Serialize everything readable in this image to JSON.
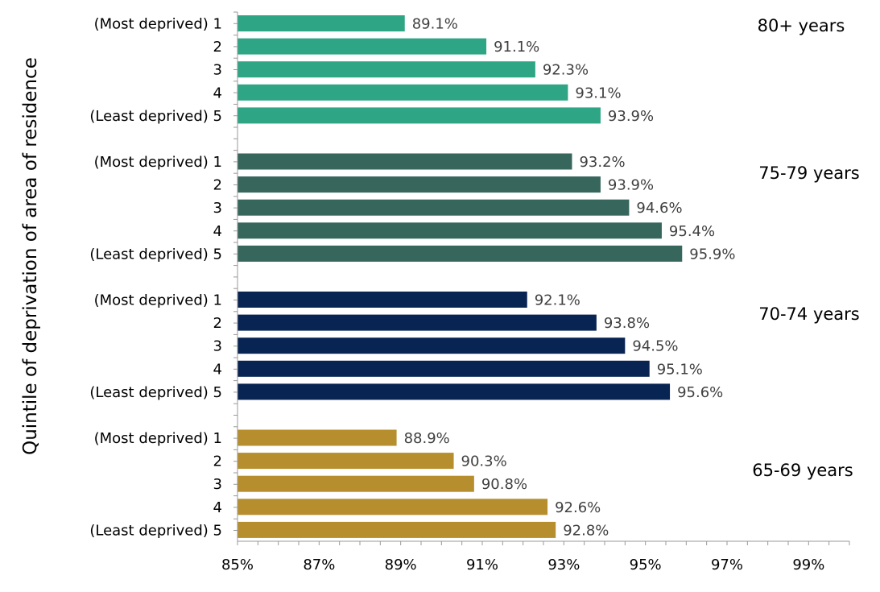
{
  "chart_data": {
    "type": "bar",
    "orientation": "horizontal",
    "ylabel": "Quintile of deprivation of area of residence",
    "xlabel": "",
    "xlim": [
      85,
      100
    ],
    "x_ticks": [
      "85%",
      "87%",
      "89%",
      "91%",
      "93%",
      "95%",
      "97%",
      "99%"
    ],
    "x_tick_values": [
      85,
      87,
      89,
      91,
      93,
      95,
      97,
      99
    ],
    "grid": false,
    "categories": [
      "(Most deprived) 1",
      "2",
      "3",
      "4",
      "(Least deprived) 5"
    ],
    "groups": [
      {
        "name": "80+ years",
        "color": "#2ea584",
        "values": [
          89.1,
          91.1,
          92.3,
          93.1,
          93.9
        ],
        "labels": [
          "89.1%",
          "91.1%",
          "92.3%",
          "93.1%",
          "93.9%"
        ]
      },
      {
        "name": "75-79 years",
        "color": "#36665c",
        "values": [
          93.2,
          93.9,
          94.6,
          95.4,
          95.9
        ],
        "labels": [
          "93.2%",
          "93.9%",
          "94.6%",
          "95.4%",
          "95.9%"
        ]
      },
      {
        "name": "70-74 years",
        "color": "#082452",
        "values": [
          92.1,
          93.8,
          94.5,
          95.1,
          95.6
        ],
        "labels": [
          "92.1%",
          "93.8%",
          "94.5%",
          "95.1%",
          "95.6%"
        ]
      },
      {
        "name": "65-69 years",
        "color": "#b78e2e",
        "values": [
          88.9,
          90.3,
          90.8,
          92.6,
          92.8
        ],
        "labels": [
          "88.9%",
          "90.3%",
          "90.8%",
          "92.6%",
          "92.8%"
        ]
      }
    ]
  }
}
